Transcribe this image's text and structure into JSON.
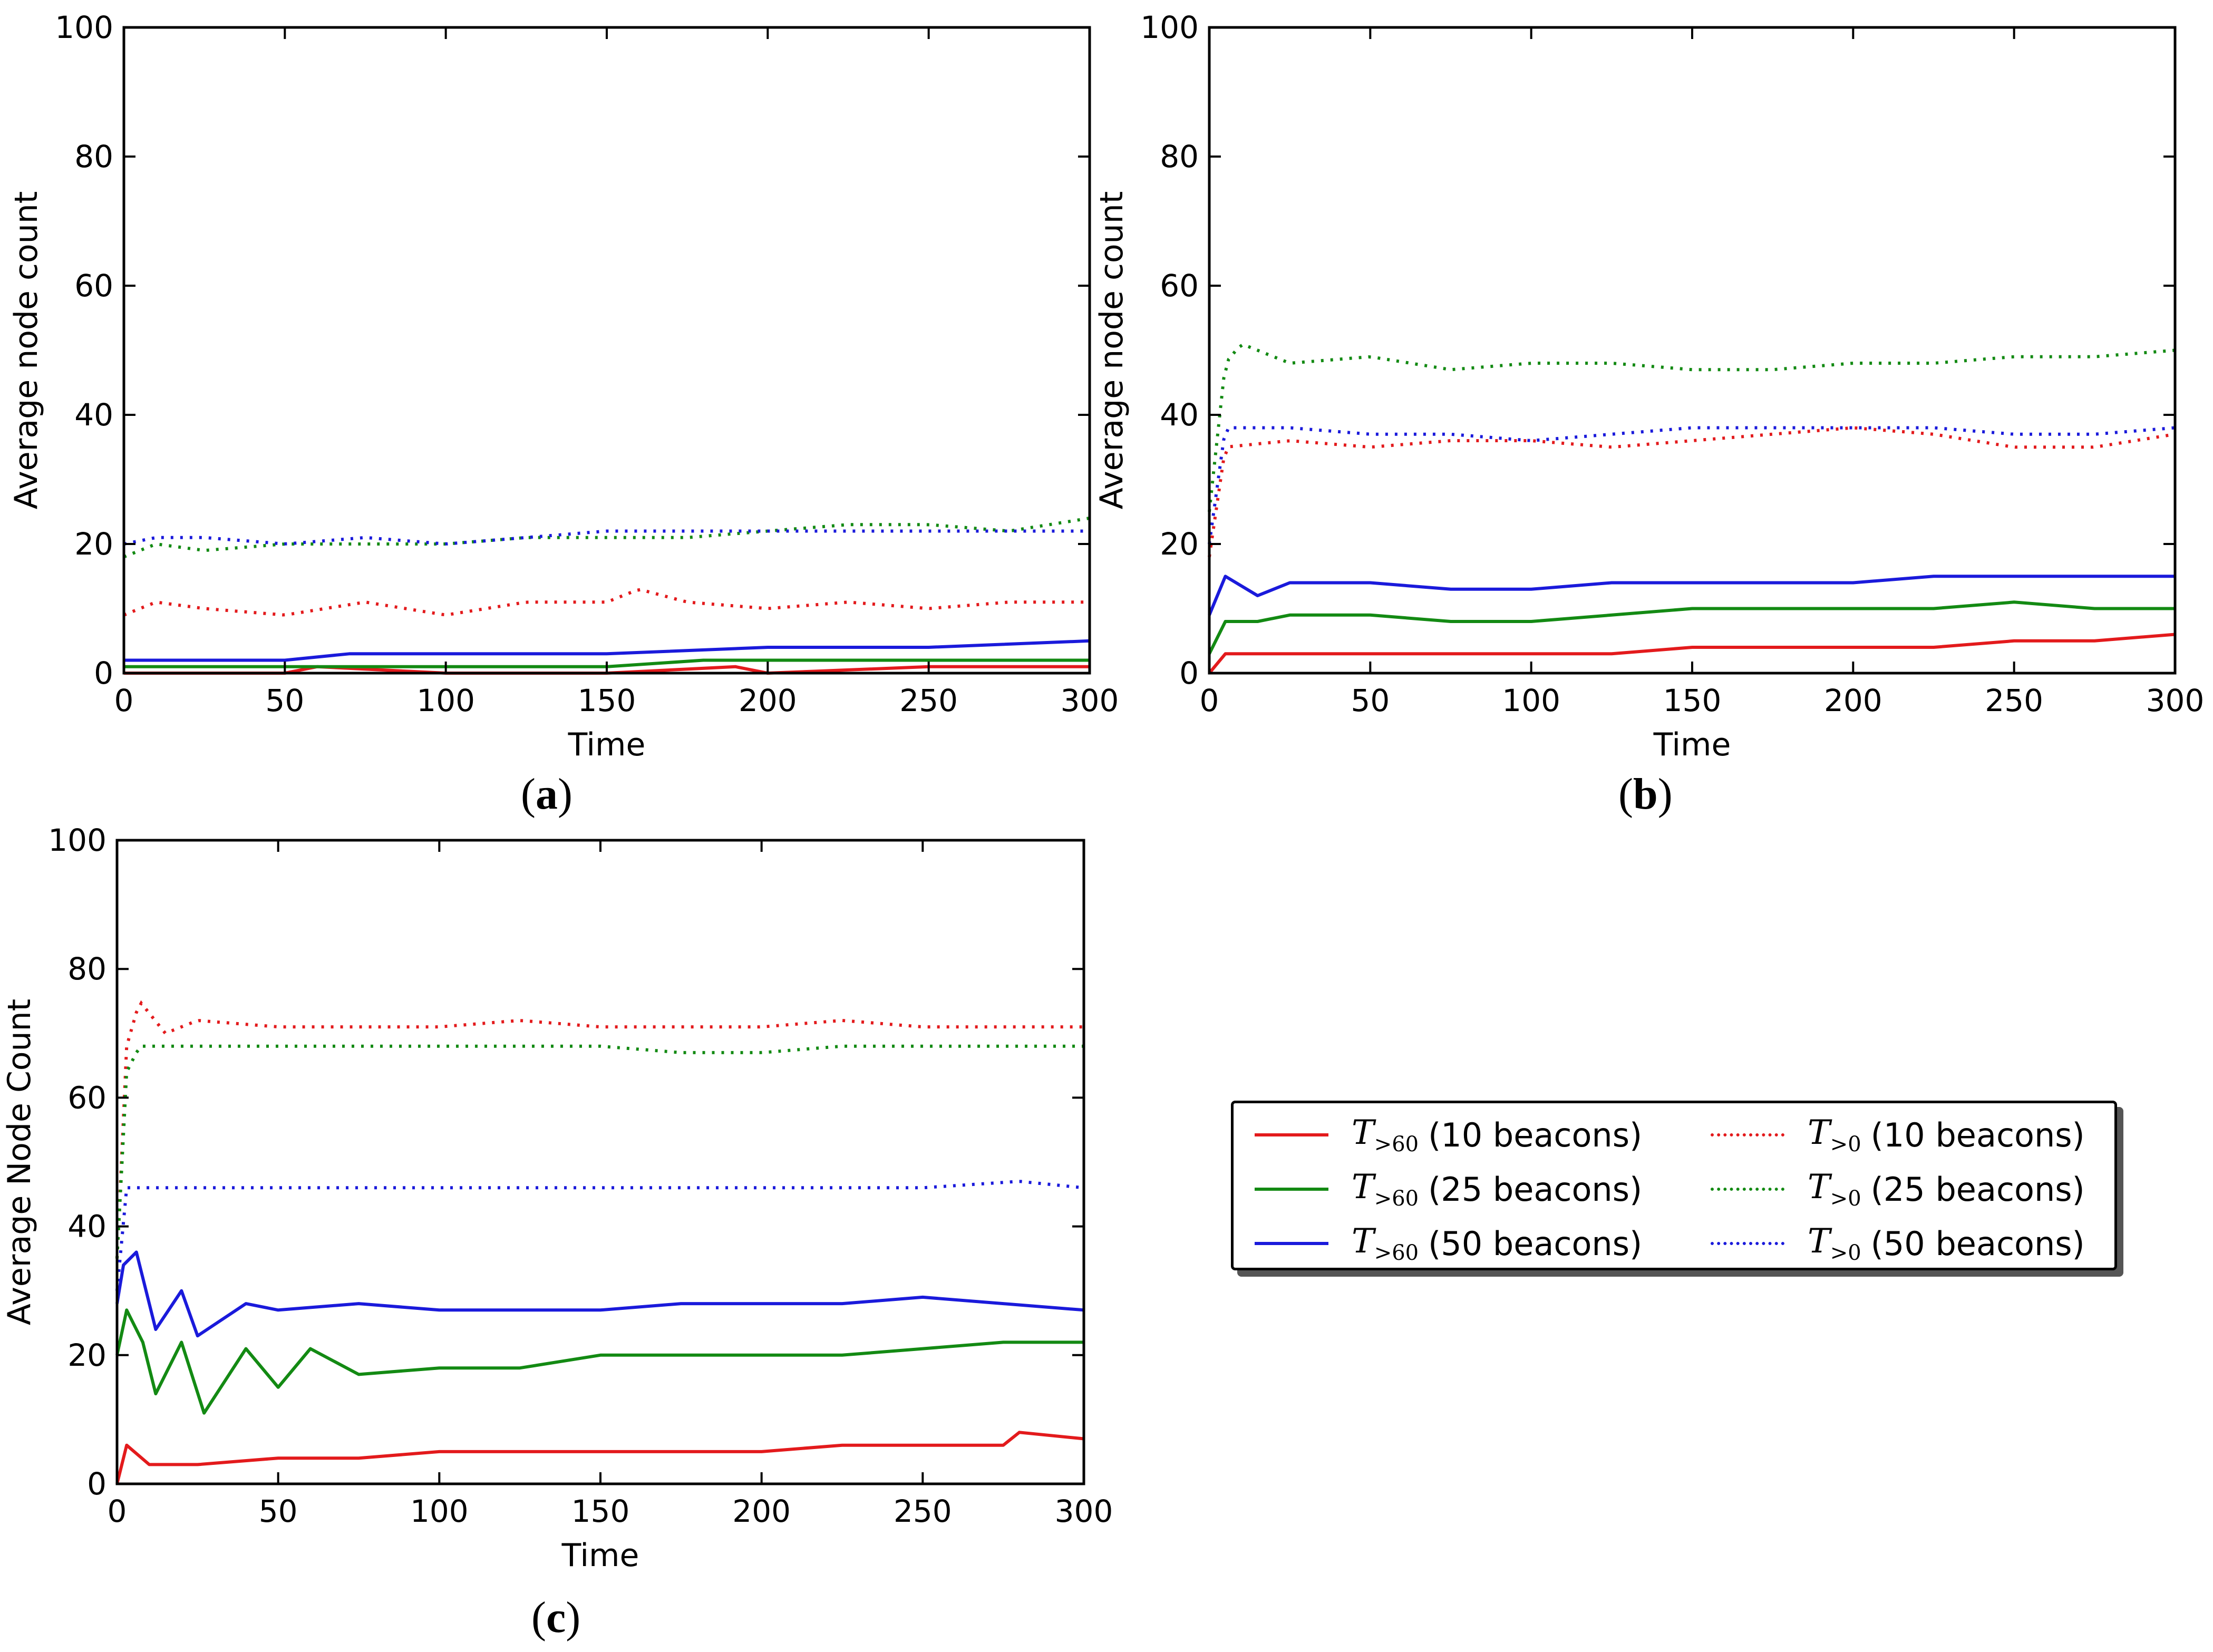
{
  "figure": {
    "panel_labels": [
      "a",
      "b",
      "c"
    ]
  },
  "legend": {
    "items": [
      {
        "symbol": "T",
        "sub": ">60",
        "text": "(10 beacons)",
        "color": "#e31a1c",
        "style": "solid"
      },
      {
        "symbol": "T",
        "sub": ">60",
        "text": "(25 beacons)",
        "color": "#138a13",
        "style": "solid"
      },
      {
        "symbol": "T",
        "sub": ">60",
        "text": "(50 beacons)",
        "color": "#1a1adb",
        "style": "solid"
      },
      {
        "symbol": "T",
        "sub": ">0",
        "text": "(10 beacons)",
        "color": "#e31a1c",
        "style": "dotted"
      },
      {
        "symbol": "T",
        "sub": ">0",
        "text": "(25 beacons)",
        "color": "#138a13",
        "style": "dotted"
      },
      {
        "symbol": "T",
        "sub": ">0",
        "text": "(50 beacons)",
        "color": "#1a1adb",
        "style": "dotted"
      }
    ]
  },
  "chart_data": [
    {
      "type": "line",
      "panel": "a",
      "xlabel": "Time",
      "ylabel": "Average node count",
      "xlim": [
        0,
        300
      ],
      "ylim": [
        0,
        100
      ],
      "xticks": [
        0,
        50,
        100,
        150,
        200,
        250,
        300
      ],
      "yticks": [
        0,
        20,
        40,
        60,
        80,
        100
      ],
      "series": [
        {
          "name": "T>60 (10 beacons)",
          "color": "#e31a1c",
          "style": "solid",
          "x": [
            0,
            10,
            50,
            60,
            100,
            150,
            190,
            200,
            250,
            300
          ],
          "y": [
            0,
            0,
            0,
            1,
            0,
            0,
            1,
            0,
            1,
            1
          ]
        },
        {
          "name": "T>60 (25 beacons)",
          "color": "#138a13",
          "style": "solid",
          "x": [
            0,
            10,
            50,
            100,
            150,
            180,
            200,
            250,
            300
          ],
          "y": [
            1,
            1,
            1,
            1,
            1,
            2,
            2,
            2,
            2
          ]
        },
        {
          "name": "T>60 (50 beacons)",
          "color": "#1a1adb",
          "style": "solid",
          "x": [
            0,
            20,
            50,
            70,
            100,
            150,
            200,
            250,
            300
          ],
          "y": [
            2,
            2,
            2,
            3,
            3,
            3,
            4,
            4,
            5
          ]
        },
        {
          "name": "T>0 (10 beacons)",
          "color": "#e31a1c",
          "style": "dotted",
          "x": [
            0,
            10,
            25,
            50,
            75,
            100,
            125,
            150,
            160,
            175,
            200,
            225,
            250,
            275,
            300
          ],
          "y": [
            9,
            11,
            10,
            9,
            11,
            9,
            11,
            11,
            13,
            11,
            10,
            11,
            10,
            11,
            11
          ]
        },
        {
          "name": "T>0 (25 beacons)",
          "color": "#138a13",
          "style": "dotted",
          "x": [
            0,
            10,
            25,
            50,
            75,
            100,
            125,
            150,
            175,
            200,
            225,
            250,
            275,
            300
          ],
          "y": [
            18,
            20,
            19,
            20,
            20,
            20,
            21,
            21,
            21,
            22,
            23,
            23,
            22,
            24
          ]
        },
        {
          "name": "T>0 (50 beacons)",
          "color": "#1a1adb",
          "style": "dotted",
          "x": [
            0,
            10,
            25,
            50,
            75,
            100,
            125,
            150,
            175,
            200,
            225,
            250,
            275,
            300
          ],
          "y": [
            20,
            21,
            21,
            20,
            21,
            20,
            21,
            22,
            22,
            22,
            22,
            22,
            22,
            22
          ]
        }
      ]
    },
    {
      "type": "line",
      "panel": "b",
      "xlabel": "Time",
      "ylabel": "Average node count",
      "xlim": [
        0,
        300
      ],
      "ylim": [
        0,
        100
      ],
      "xticks": [
        0,
        50,
        100,
        150,
        200,
        250,
        300
      ],
      "yticks": [
        0,
        20,
        40,
        60,
        80,
        100
      ],
      "series": [
        {
          "name": "T>60 (10 beacons)",
          "color": "#e31a1c",
          "style": "solid",
          "x": [
            0,
            5,
            25,
            50,
            75,
            100,
            125,
            150,
            175,
            200,
            225,
            250,
            275,
            300
          ],
          "y": [
            0,
            3,
            3,
            3,
            3,
            3,
            3,
            4,
            4,
            4,
            4,
            5,
            5,
            6
          ]
        },
        {
          "name": "T>60 (25 beacons)",
          "color": "#138a13",
          "style": "solid",
          "x": [
            0,
            5,
            15,
            25,
            50,
            75,
            100,
            125,
            150,
            175,
            200,
            225,
            250,
            275,
            300
          ],
          "y": [
            3,
            8,
            8,
            9,
            9,
            8,
            8,
            9,
            10,
            10,
            10,
            10,
            11,
            10,
            10
          ]
        },
        {
          "name": "T>60 (50 beacons)",
          "color": "#1a1adb",
          "style": "solid",
          "x": [
            0,
            5,
            15,
            25,
            50,
            75,
            100,
            125,
            150,
            175,
            200,
            225,
            250,
            275,
            300
          ],
          "y": [
            9,
            15,
            12,
            14,
            14,
            13,
            13,
            14,
            14,
            14,
            14,
            15,
            15,
            15,
            15
          ]
        },
        {
          "name": "T>0 (10 beacons)",
          "color": "#e31a1c",
          "style": "dotted",
          "x": [
            0,
            5,
            25,
            50,
            75,
            100,
            125,
            150,
            175,
            200,
            225,
            250,
            275,
            300
          ],
          "y": [
            18,
            35,
            36,
            35,
            36,
            36,
            35,
            36,
            37,
            38,
            37,
            35,
            35,
            37
          ]
        },
        {
          "name": "T>0 (25 beacons)",
          "color": "#138a13",
          "style": "dotted",
          "x": [
            0,
            5,
            10,
            25,
            50,
            75,
            100,
            125,
            150,
            175,
            200,
            225,
            250,
            275,
            300
          ],
          "y": [
            25,
            48,
            51,
            48,
            49,
            47,
            48,
            48,
            47,
            47,
            48,
            48,
            49,
            49,
            50
          ]
        },
        {
          "name": "T>0 (50 beacons)",
          "color": "#1a1adb",
          "style": "dotted",
          "x": [
            0,
            5,
            25,
            50,
            75,
            100,
            125,
            150,
            175,
            200,
            225,
            250,
            275,
            300
          ],
          "y": [
            20,
            38,
            38,
            37,
            37,
            36,
            37,
            38,
            38,
            38,
            38,
            37,
            37,
            38
          ]
        }
      ]
    },
    {
      "type": "line",
      "panel": "c",
      "xlabel": "Time",
      "ylabel": "Average Node Count",
      "xlim": [
        0,
        300
      ],
      "ylim": [
        0,
        100
      ],
      "xticks": [
        0,
        50,
        100,
        150,
        200,
        250,
        300
      ],
      "yticks": [
        0,
        20,
        40,
        60,
        80,
        100
      ],
      "series": [
        {
          "name": "T>60 (10 beacons)",
          "color": "#e31a1c",
          "style": "solid",
          "x": [
            0,
            3,
            10,
            25,
            50,
            75,
            100,
            125,
            150,
            175,
            200,
            225,
            250,
            275,
            280,
            300
          ],
          "y": [
            0,
            6,
            3,
            3,
            4,
            4,
            5,
            5,
            5,
            5,
            5,
            6,
            6,
            6,
            8,
            7
          ]
        },
        {
          "name": "T>60 (25 beacons)",
          "color": "#138a13",
          "style": "solid",
          "x": [
            0,
            3,
            8,
            12,
            20,
            27,
            40,
            50,
            60,
            75,
            100,
            125,
            150,
            175,
            200,
            225,
            250,
            275,
            300
          ],
          "y": [
            20,
            27,
            22,
            14,
            22,
            11,
            21,
            15,
            21,
            17,
            18,
            18,
            20,
            20,
            20,
            20,
            21,
            22,
            22
          ]
        },
        {
          "name": "T>60 (50 beacons)",
          "color": "#1a1adb",
          "style": "solid",
          "x": [
            0,
            2,
            6,
            12,
            20,
            25,
            40,
            50,
            75,
            100,
            125,
            150,
            175,
            200,
            225,
            250,
            275,
            300
          ],
          "y": [
            28,
            34,
            36,
            24,
            30,
            23,
            28,
            27,
            28,
            27,
            27,
            27,
            28,
            28,
            28,
            29,
            28,
            27
          ]
        },
        {
          "name": "T>0 (10 beacons)",
          "color": "#e31a1c",
          "style": "dotted",
          "x": [
            0,
            3,
            7,
            15,
            25,
            50,
            75,
            100,
            125,
            150,
            175,
            200,
            225,
            250,
            275,
            300
          ],
          "y": [
            35,
            68,
            75,
            70,
            72,
            71,
            71,
            71,
            72,
            71,
            71,
            71,
            72,
            71,
            71,
            71
          ]
        },
        {
          "name": "T>0 (25 beacons)",
          "color": "#138a13",
          "style": "dotted",
          "x": [
            0,
            3,
            7,
            25,
            50,
            75,
            100,
            125,
            150,
            175,
            200,
            225,
            250,
            275,
            300
          ],
          "y": [
            35,
            64,
            68,
            68,
            68,
            68,
            68,
            68,
            68,
            67,
            67,
            68,
            68,
            68,
            68
          ]
        },
        {
          "name": "T>0 (50 beacons)",
          "color": "#1a1adb",
          "style": "dotted",
          "x": [
            0,
            3,
            10,
            50,
            100,
            150,
            200,
            250,
            280,
            300
          ],
          "y": [
            30,
            46,
            46,
            46,
            46,
            46,
            46,
            46,
            47,
            46
          ]
        }
      ]
    }
  ]
}
